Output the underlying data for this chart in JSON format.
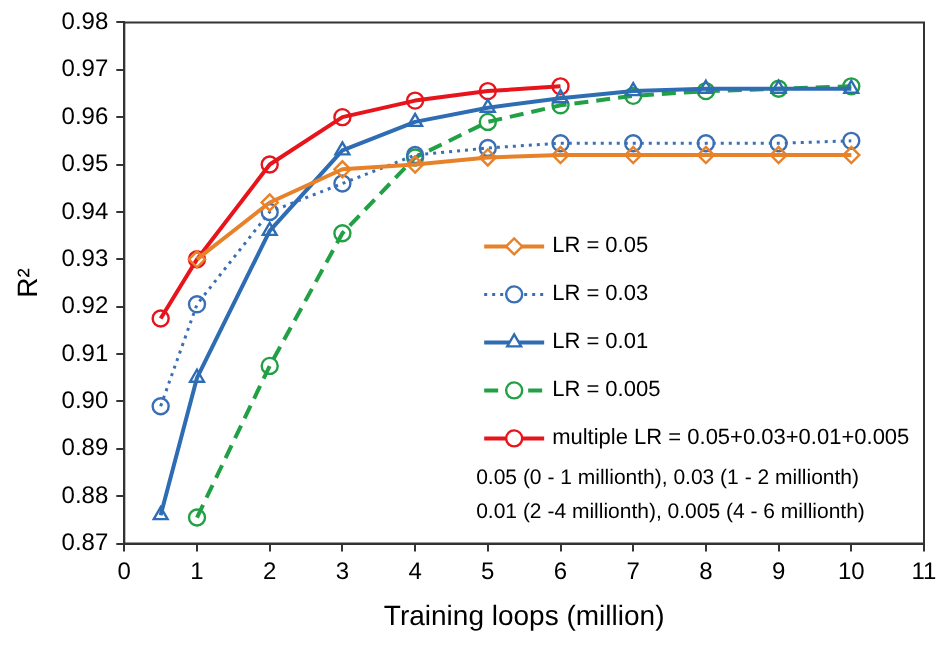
{
  "chart_data": {
    "type": "line",
    "xlabel": "Training loops (million)",
    "ylabel": "R²",
    "xlim": [
      0,
      11
    ],
    "xticks": [
      0,
      1,
      2,
      3,
      4,
      5,
      6,
      7,
      8,
      9,
      10,
      11
    ],
    "ylim": [
      0.87,
      0.98
    ],
    "yticks": [
      0.87,
      0.88,
      0.89,
      {
        "value": 0.9,
        "label": "0.90"
      },
      0.91,
      0.92,
      0.93,
      0.94,
      0.95,
      0.96,
      0.97,
      0.98
    ],
    "grid": false,
    "legend": "bottom right",
    "series": [
      {
        "name": "LR = 0.05",
        "color": "#e8822a",
        "marker": "diamond",
        "line_style": "solid",
        "x": [
          1,
          2,
          3,
          4,
          5,
          6,
          7,
          8,
          9,
          10
        ],
        "values": [
          0.93,
          0.942,
          0.949,
          0.95,
          0.9515,
          0.952,
          0.952,
          0.952,
          0.952,
          0.952
        ]
      },
      {
        "name": "LR = 0.03",
        "color": "#3a6fb5",
        "marker": "circle",
        "line_style": "dotted",
        "x": [
          0.5,
          1,
          2,
          3,
          4,
          5,
          6,
          7,
          8,
          9,
          10
        ],
        "values": [
          0.899,
          0.9205,
          0.94,
          0.946,
          0.952,
          0.9535,
          0.9545,
          0.9545,
          0.9545,
          0.9545,
          0.955
        ]
      },
      {
        "name": "LR = 0.01",
        "color": "#2e6db4",
        "marker": "triangle",
        "line_style": "solid",
        "x": [
          0.5,
          1,
          2,
          3,
          4,
          5,
          6,
          7,
          8,
          9,
          10
        ],
        "values": [
          0.876,
          0.905,
          0.936,
          0.953,
          0.959,
          0.962,
          0.964,
          0.9655,
          0.966,
          0.966,
          0.966
        ]
      },
      {
        "name": "LR = 0.005",
        "color": "#22a045",
        "marker": "circle",
        "line_style": "dashed",
        "x": [
          1,
          2,
          3,
          4,
          5,
          6,
          7,
          8,
          9,
          10
        ],
        "values": [
          0.8755,
          0.9075,
          0.9355,
          0.9515,
          0.959,
          0.9625,
          0.9645,
          0.9655,
          0.966,
          0.9665
        ]
      },
      {
        "name": "multiple LR = 0.05+0.03+0.01+0.005",
        "color": "#e8141c",
        "marker": "circle",
        "line_style": "solid",
        "x": [
          0.5,
          1,
          2,
          3,
          4,
          5,
          6
        ],
        "values": [
          0.9175,
          0.93,
          0.95,
          0.96,
          0.9635,
          0.9655,
          0.9665
        ]
      }
    ],
    "annotations": [
      "0.05 (0 - 1 millionth), 0.03 (1 - 2 millionth)",
      "0.01 (2 -4 millionth), 0.005 (4 - 6 millionth)"
    ]
  }
}
